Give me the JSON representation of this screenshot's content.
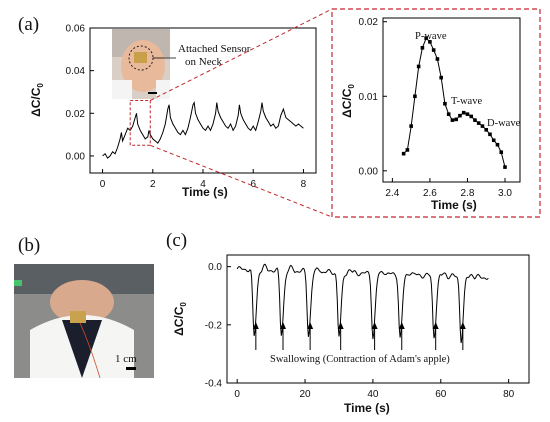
{
  "panels": {
    "a": "(a)",
    "b": "(b)",
    "c": "(c)"
  },
  "colors": {
    "zoom_box": "#c0282d",
    "line": "#000000"
  },
  "photos": {
    "a_label": "Attached Sensor\non Neck",
    "b_scale": "1 cm"
  },
  "chart_data": [
    {
      "id": "a_main",
      "type": "line",
      "xlabel": "Time (s)",
      "ylabel": "ΔC/C0",
      "xlim": [
        -0.5,
        8.5
      ],
      "ylim": [
        -0.008,
        0.06
      ],
      "xticks": [
        0,
        2,
        4,
        6,
        8
      ],
      "yticks": [
        0.0,
        0.02,
        0.04,
        0.06
      ],
      "ytick_labels": [
        "0.00",
        "0.02",
        "0.04",
        "0.06"
      ],
      "x": [
        0.0,
        0.1,
        0.2,
        0.3,
        0.4,
        0.5,
        0.6,
        0.7,
        0.75,
        0.8,
        0.9,
        1.0,
        1.1,
        1.2,
        1.3,
        1.35,
        1.4,
        1.5,
        1.6,
        1.7,
        1.8,
        1.85,
        1.9,
        2.0,
        2.1,
        2.2,
        2.3,
        2.4,
        2.5,
        2.6,
        2.65,
        2.7,
        2.8,
        2.9,
        3.0,
        3.1,
        3.2,
        3.3,
        3.4,
        3.5,
        3.6,
        3.65,
        3.7,
        3.8,
        3.9,
        4.0,
        4.1,
        4.2,
        4.3,
        4.4,
        4.5,
        4.55,
        4.6,
        4.7,
        4.8,
        4.9,
        5.0,
        5.1,
        5.2,
        5.3,
        5.4,
        5.45,
        5.5,
        5.6,
        5.7,
        5.8,
        5.9,
        6.0,
        6.1,
        6.2,
        6.3,
        6.35,
        6.4,
        6.5,
        6.6,
        6.7,
        6.8,
        6.9,
        7.0,
        7.1,
        7.2,
        7.25,
        7.3,
        7.4,
        7.5,
        7.6,
        7.7,
        7.8,
        7.9,
        8.0
      ],
      "y": [
        0.0,
        0.001,
        -0.001,
        0.0,
        0.002,
        0.001,
        0.004,
        0.008,
        0.011,
        0.007,
        0.01,
        0.013,
        0.012,
        0.014,
        0.018,
        0.02,
        0.015,
        0.012,
        0.01,
        0.008,
        0.009,
        0.012,
        0.01,
        0.008,
        0.007,
        0.006,
        0.008,
        0.011,
        0.015,
        0.022,
        0.024,
        0.018,
        0.015,
        0.013,
        0.011,
        0.01,
        0.012,
        0.01,
        0.013,
        0.018,
        0.024,
        0.025,
        0.02,
        0.017,
        0.015,
        0.013,
        0.012,
        0.014,
        0.012,
        0.015,
        0.02,
        0.025,
        0.021,
        0.018,
        0.016,
        0.014,
        0.013,
        0.015,
        0.012,
        0.014,
        0.019,
        0.024,
        0.02,
        0.017,
        0.015,
        0.013,
        0.012,
        0.014,
        0.012,
        0.016,
        0.021,
        0.025,
        0.021,
        0.018,
        0.016,
        0.014,
        0.015,
        0.013,
        0.014,
        0.019,
        0.022,
        0.02,
        0.018,
        0.017,
        0.016,
        0.015,
        0.014,
        0.015,
        0.014,
        0.013
      ]
    },
    {
      "id": "a_zoom",
      "type": "line",
      "xlabel": "Time (s)",
      "ylabel": "ΔC/C0",
      "xlim": [
        2.35,
        3.08
      ],
      "ylim": [
        -0.0015,
        0.0205
      ],
      "xticks": [
        2.4,
        2.6,
        2.8,
        3.0
      ],
      "xtick_labels": [
        "2.4",
        "2.6",
        "2.8",
        "3.0"
      ],
      "yticks": [
        0.0,
        0.01,
        0.02
      ],
      "ytick_labels": [
        "0.00",
        "0.01",
        "0.02"
      ],
      "x": [
        2.46,
        2.48,
        2.5,
        2.52,
        2.54,
        2.56,
        2.58,
        2.6,
        2.62,
        2.64,
        2.66,
        2.68,
        2.7,
        2.72,
        2.74,
        2.76,
        2.78,
        2.8,
        2.82,
        2.84,
        2.86,
        2.88,
        2.9,
        2.92,
        2.94,
        2.96,
        2.98,
        3.0
      ],
      "y": [
        0.0023,
        0.0028,
        0.006,
        0.01,
        0.014,
        0.0165,
        0.0178,
        0.0173,
        0.0162,
        0.015,
        0.0125,
        0.009,
        0.0076,
        0.0068,
        0.0069,
        0.0074,
        0.0078,
        0.0076,
        0.0073,
        0.0068,
        0.0064,
        0.006,
        0.0055,
        0.0049,
        0.0041,
        0.0035,
        0.0025,
        0.0005
      ],
      "annotations": [
        "P-wave",
        "T-wave",
        "D-wave"
      ]
    },
    {
      "id": "c",
      "type": "line",
      "xlabel": "Time (s)",
      "ylabel": "ΔC/C0",
      "xlim": [
        -3,
        86
      ],
      "ylim": [
        -0.4,
        0.04
      ],
      "xticks": [
        0,
        20,
        40,
        60,
        80
      ],
      "yticks": [
        0.0,
        -0.2,
        -0.4
      ],
      "ytick_labels": [
        "0.0",
        "-0.2",
        "-0.4"
      ],
      "swallow_times": [
        5,
        13,
        21,
        30,
        40,
        48,
        58,
        66
      ],
      "swallow_depths": [
        -0.23,
        -0.22,
        -0.22,
        -0.22,
        -0.22,
        -0.22,
        -0.21,
        -0.22
      ],
      "xend": 74,
      "caption": "Swallowing (Contraction of Adam's apple)"
    }
  ]
}
